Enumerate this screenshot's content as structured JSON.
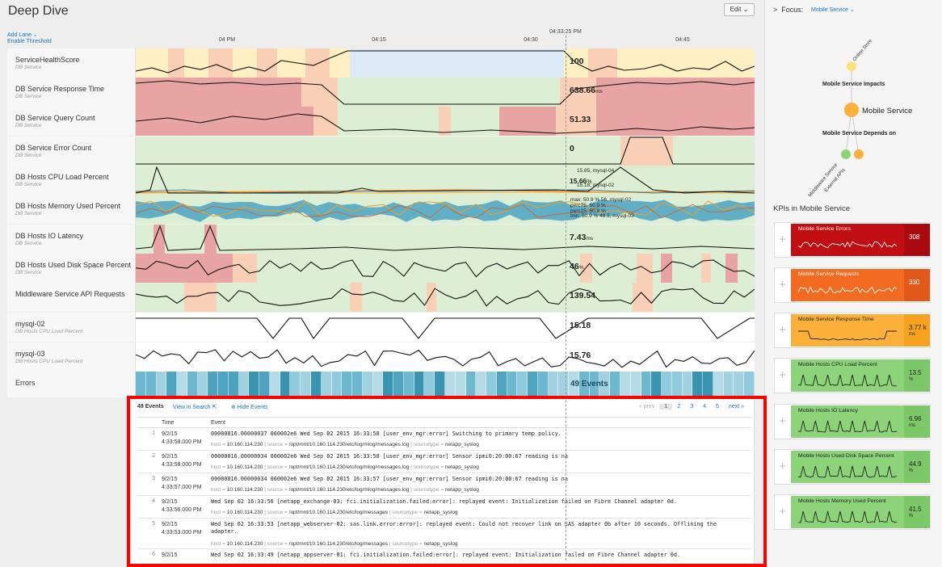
{
  "header": {
    "title": "Deep Dive",
    "edit_label": "Edit ⌄",
    "add_lane": "Add Lane ⌄",
    "enable_threshold": "Enable Threshold"
  },
  "timeline": {
    "ticks": [
      "04 PM",
      "04:15",
      "04:30",
      "04:45"
    ],
    "cursor_time": "04:33:25 PM"
  },
  "lanes": [
    {
      "name": "ServiceHealthScore",
      "sub": "DB Service",
      "value": "100",
      "unit": ""
    },
    {
      "name": "DB Service Response Time",
      "sub": "DB Service",
      "value": "638.66",
      "unit": "ms"
    },
    {
      "name": "DB Service Query Count",
      "sub": "DB Service",
      "value": "51.33",
      "unit": ""
    },
    {
      "name": "DB Service Error Count",
      "sub": "DB Service",
      "value": "0",
      "unit": ""
    },
    {
      "name": "DB Hosts CPU Load Percent",
      "sub": "DB Service",
      "value": "15.66",
      "unit": "%"
    },
    {
      "name": "DB Hosts Memory Used Percent",
      "sub": "DB Service",
      "value": "",
      "unit": ""
    },
    {
      "name": "DB Hosts IO Latency",
      "sub": "DB Service",
      "value": "7.43",
      "unit": "ms"
    },
    {
      "name": "DB Hosts Used Disk Space Percent",
      "sub": "DB Service",
      "value": "46",
      "unit": "%"
    },
    {
      "name": "Middleware Service API Requests",
      "sub": "",
      "value": "139.54",
      "unit": ""
    },
    {
      "name": "mysql-02",
      "sub": "DB Hosts CPU Load Percent",
      "value": "15.18",
      "unit": ""
    },
    {
      "name": "mysql-03",
      "sub": "DB Hosts CPU Load Percent",
      "value": "15.76",
      "unit": ""
    }
  ],
  "lane_notes": {
    "cpu_top": "15.85, mysql-04",
    "cpu_bottom": "15.18, mysql-02",
    "mem_1": "max: 50.9    % 56, mysql-02",
    "mem_2": "perc75: 50.9 %",
    "mem_3": "perc25: 50.9 %",
    "mem_4": "min: 50.9    % 48.5, mysql-03"
  },
  "errors_lane": {
    "name": "Errors",
    "value": "49 Events"
  },
  "events": {
    "count": "49 Events",
    "view_in_search": "View in Search ⇱",
    "hide_events": "⊕ Hide Events",
    "pager": [
      "« prev",
      "1",
      "2",
      "3",
      "4",
      "5",
      "next »"
    ],
    "columns": {
      "time": "Time",
      "event": "Event"
    },
    "rows": [
      {
        "num": "1",
        "date": "9/2/15",
        "time": "4:33:58.000 PM",
        "text": "00000016.00000037 000002e6 Wed Sep 02 2015 16:33:58 [user_env_mgr:error] Switching to primary temp policy.",
        "host": "10.160.114.230",
        "source": "/opt/mnt/10.160.114.230/etc/log/mlog/messages.log",
        "sourcetype": "netapp_syslog"
      },
      {
        "num": "2",
        "date": "9/2/15",
        "time": "4:33:58.000 PM",
        "text": "00000016.00000034 000002e6 Wed Sep 02 2015 16:33:58 [user_env_mgr:error] Sensor ipmi0:20:00:67 reading is na",
        "host": "10.160.114.230",
        "source": "/opt/mnt/10.160.114.230/etc/log/mlog/messages.log",
        "sourcetype": "netapp_syslog"
      },
      {
        "num": "3",
        "date": "9/2/15",
        "time": "4:33:57.000 PM",
        "text": "00000016.00000034 000002e6 Wed Sep 02 2015 16:33:57 [user_env_mgr:error] Sensor ipmi0:20:00:67 reading is na",
        "host": "10.160.114.230",
        "source": "/opt/mnt/10.160.114.230/etc/log/mlog/messages.log",
        "sourcetype": "netapp_syslog"
      },
      {
        "num": "4",
        "date": "9/2/15",
        "time": "4:33:56.000 PM",
        "text": "Wed Sep 02 16:33:56  [netapp_exchange-03: fci.initialization.failed:error]: replayed event: Initialization failed on Fibre Channel adapter 0d.",
        "host": "10.160.114.230",
        "source": "/opt/mnt/10.160.114.230/etc/log/messages",
        "sourcetype": "netapp_syslog"
      },
      {
        "num": "5",
        "date": "9/2/15",
        "time": "4:33:53.000 PM",
        "text": "Wed Sep 02 16:33:53  [netapp_webserver-02: sas.link.error:error]: replayed event: Could not recover link on SAS adapter 0b after 10 seconds. Offlining the adapter.",
        "host": "10.160.114.230",
        "source": "/opt/mnt/10.160.114.230/etc/log/messages",
        "sourcetype": "netapp_syslog"
      },
      {
        "num": "6",
        "date": "9/2/15",
        "time": "",
        "text": "Wed Sep 02 16:33:49  [netapp_appserver-01: fci.initialization.failed:error]: replayed event: Initialization failed on Fibre Channel adapter 0d.",
        "host": "",
        "source": "",
        "sourcetype": ""
      }
    ],
    "meta_labels": {
      "host": "host = ",
      "source": "source = ",
      "sourcetype": "sourcetype = "
    }
  },
  "side": {
    "focus_label": "Focus:",
    "focus_value": "Mobile Service ⌄",
    "graph": {
      "top_node": "Online Store",
      "impacts": "Mobile Service Impacts",
      "center": "Mobile Service",
      "depends": "Mobile Service Depends on",
      "left_node": "Middleware Service",
      "right_node": "External APIs"
    },
    "kpi_title": "KPIs in Mobile Service",
    "kpis": [
      {
        "name": "Mobile Service Errors",
        "value": "308",
        "unit": "",
        "bg": "#c00e12",
        "valbg": "#a80a0e",
        "fg": "#ffffff"
      },
      {
        "name": "Mobile Service Requests",
        "value": "330",
        "unit": "",
        "bg": "#f26b21",
        "valbg": "#e0591a",
        "fg": "#ffffff"
      },
      {
        "name": "Mobile Service Response Time",
        "value": "3.77 k",
        "unit": "ms",
        "bg": "#fbb03b",
        "valbg": "#f7a21e",
        "fg": "#222222"
      },
      {
        "name": "Mobile Hosts CPU Load Percent",
        "value": "13.5",
        "unit": "%",
        "bg": "#8dd37a",
        "valbg": "#7cc868",
        "fg": "#222222"
      },
      {
        "name": "Mobile Hosts IO Latency",
        "value": "6.96",
        "unit": "ms",
        "bg": "#8dd37a",
        "valbg": "#7cc868",
        "fg": "#222222"
      },
      {
        "name": "Mobile Hosts Used Disk Space Percent",
        "value": "44.9",
        "unit": "%",
        "bg": "#8dd37a",
        "valbg": "#7cc868",
        "fg": "#222222"
      },
      {
        "name": "Mobile Hosts Memory Used Percent",
        "value": "41.5",
        "unit": "%",
        "bg": "#8dd37a",
        "valbg": "#7cc868",
        "fg": "#222222"
      }
    ]
  },
  "colors": {
    "green": "#dcefd4",
    "red": "#e8a3a3",
    "orange": "#f9cfb6",
    "yellow": "#fdf0c2",
    "blue": "#dceaf5",
    "line": "#111111",
    "accent": "#1a73b5",
    "highlight": "#ff0000"
  }
}
